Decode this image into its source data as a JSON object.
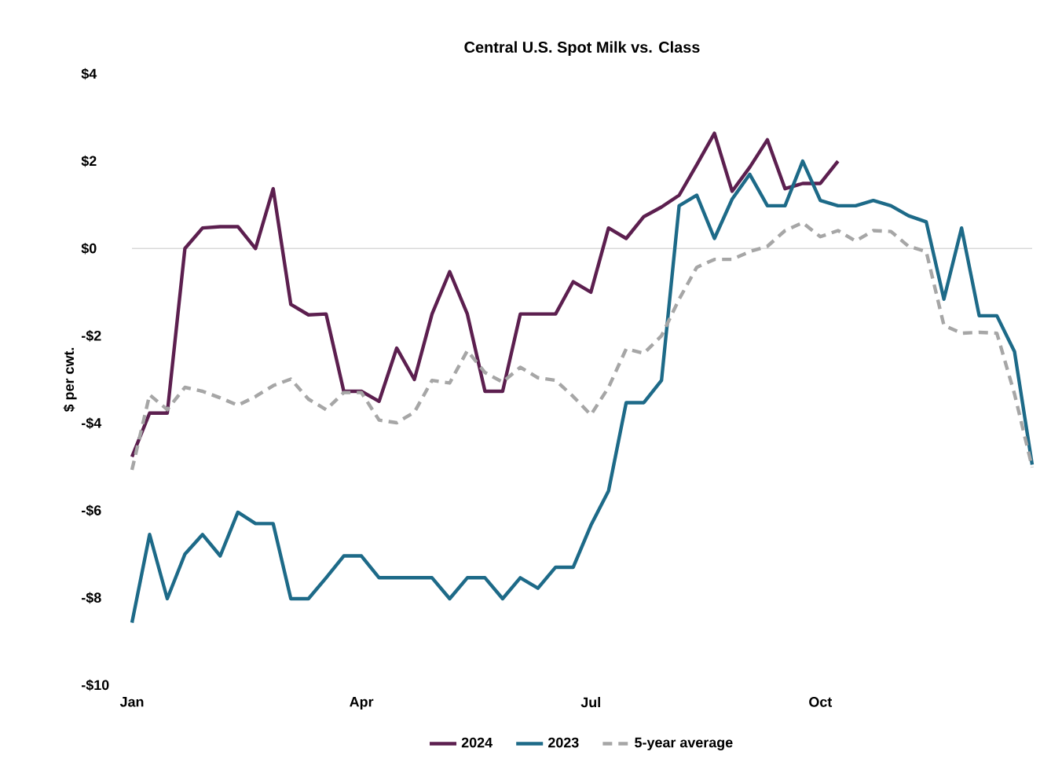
{
  "chart_data": {
    "type": "line",
    "title": "Central U.S. Spot Milk vs. Class",
    "ylabel": "$ per cwt.",
    "categories": [
      "Jan",
      null,
      null,
      null,
      null,
      null,
      null,
      null,
      null,
      null,
      null,
      null,
      null,
      "Apr",
      null,
      null,
      null,
      null,
      null,
      null,
      null,
      null,
      null,
      null,
      null,
      null,
      "Jul",
      null,
      null,
      null,
      null,
      null,
      null,
      null,
      null,
      null,
      null,
      null,
      null,
      "Oct",
      null,
      null,
      null,
      null,
      null,
      null,
      null,
      null,
      null,
      null,
      null,
      null
    ],
    "series": [
      {
        "name": "2024",
        "color": "#5c1f4f",
        "values": [
          -4.77,
          -3.77,
          -3.77,
          0,
          0.47,
          0.5,
          0.5,
          0,
          1.37,
          -1.28,
          -1.52,
          -1.5,
          -3.27,
          -3.27,
          -3.5,
          -2.28,
          -3.0,
          -1.5,
          -0.53,
          -1.5,
          -3.27,
          -3.27,
          -1.5,
          -1.5,
          -1.5,
          -0.76,
          -1.0,
          0.47,
          0.23,
          0.73,
          0.95,
          1.22,
          1.92,
          2.64,
          1.31,
          1.86,
          2.49,
          1.37,
          1.49,
          1.49,
          2.0,
          null,
          null,
          null,
          null,
          null,
          null,
          null,
          null,
          null,
          null,
          null
        ]
      },
      {
        "name": "2023",
        "color": "#1d6a88",
        "values": [
          -8.57,
          -6.55,
          -8.02,
          -7.0,
          -6.55,
          -7.04,
          -6.04,
          -6.3,
          -6.3,
          -8.02,
          -8.02,
          -7.54,
          -7.04,
          -7.04,
          -7.54,
          -7.54,
          -7.54,
          -7.54,
          -8.02,
          -7.54,
          -7.54,
          -8.02,
          -7.54,
          -7.78,
          -7.3,
          -7.3,
          -6.34,
          -5.55,
          -3.53,
          -3.53,
          -3.02,
          0.98,
          1.22,
          0.23,
          1.13,
          1.7,
          0.98,
          0.98,
          2.0,
          1.1,
          0.98,
          0.98,
          1.1,
          0.98,
          0.75,
          0.61,
          -1.16,
          0.47,
          -1.54,
          -1.54,
          -2.36,
          -4.95
        ]
      },
      {
        "name": "5-year average",
        "color": "#a6a6a6",
        "line_style": "dashed",
        "values": [
          -5.07,
          -3.35,
          -3.69,
          -3.18,
          -3.27,
          -3.42,
          -3.59,
          -3.39,
          -3.14,
          -2.99,
          -3.45,
          -3.69,
          -3.3,
          -3.3,
          -3.93,
          -3.99,
          -3.75,
          -3.02,
          -3.08,
          -2.34,
          -2.84,
          -3.06,
          -2.72,
          -2.96,
          -3.02,
          -3.39,
          -3.81,
          -3.18,
          -2.3,
          -2.4,
          -2.0,
          -1.16,
          -0.43,
          -0.25,
          -0.25,
          -0.07,
          0.05,
          0.41,
          0.59,
          0.27,
          0.41,
          0.17,
          0.41,
          0.39,
          0.05,
          -0.07,
          -1.76,
          -1.94,
          -1.92,
          -1.94,
          -3.33,
          -5.01
        ]
      }
    ],
    "ylim": [
      -10,
      4
    ],
    "yticks": [
      {
        "value": -10,
        "label": "-$10"
      },
      {
        "value": -8,
        "label": "-$8"
      },
      {
        "value": -6,
        "label": "-$6"
      },
      {
        "value": -4,
        "label": "-$4"
      },
      {
        "value": -2,
        "label": "-$2"
      },
      {
        "value": 0,
        "label": "$0"
      },
      {
        "value": 2,
        "label": "$2"
      },
      {
        "value": 4,
        "label": "$4"
      }
    ],
    "ref_lines": [
      {
        "axis": "y",
        "value": 0,
        "color": "#d9d9d9"
      }
    ],
    "legend": "bottom",
    "grid": false,
    "marker": "none"
  }
}
